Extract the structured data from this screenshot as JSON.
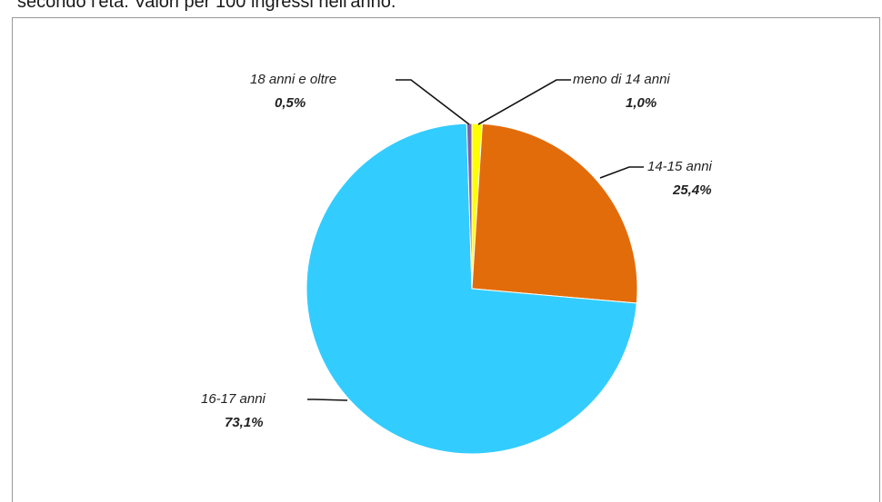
{
  "caption": "secondo l'età. Valori per 100 ingressi nell'anno.",
  "chart_data": {
    "type": "pie",
    "title": "",
    "slices": [
      {
        "label": "meno di 14 anni",
        "value_label": "1,0%",
        "value": 1.0,
        "color": "#FFFF00"
      },
      {
        "label": "14-15 anni",
        "value_label": "25,4%",
        "value": 25.4,
        "color": "#E36C0A"
      },
      {
        "label": "16-17 anni",
        "value_label": "73,1%",
        "value": 73.1,
        "color": "#33CCFF"
      },
      {
        "label": "18 anni e oltre",
        "value_label": "0,5%",
        "value": 0.5,
        "color": "#7F5FA8"
      }
    ],
    "legend": "none"
  }
}
